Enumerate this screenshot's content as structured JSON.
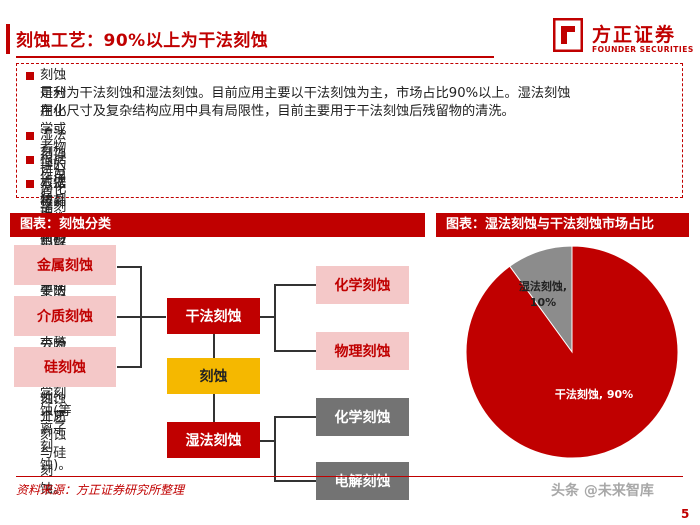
{
  "header": {
    "title": "刻蚀工艺：90%以上为干法刻蚀",
    "logo_cn": "方正证券",
    "logo_en": "FOUNDER SECURITIES",
    "brand_color": "#c00000"
  },
  "bullets": [
    "刻蚀是利用化学或者物理的方法将晶圆表面附着的不必要的材质进行去除的过程。刻蚀工艺",
    "可分为干法刻蚀和湿法刻蚀。目前应用主要以干法刻蚀为主，市场占比90%以上。湿法刻蚀",
    "在小尺寸及复杂结构应用中具有局限性，目前主要用于干法刻蚀后残留物的清洗。",
    "湿法刻蚀可分为化学刻蚀和电解刻蚀。",
    "根据作用原理，干法刻蚀可分为物理刻蚀(离子铣刻蚀)和化学刻蚀(等离子刻蚀)。",
    "根据被刻蚀的材料类型，干法刻蚀则可分为金属刻蚀、介质刻蚀与硅刻蚀。"
  ],
  "left_section": {
    "header": "图表：刻蚀分类",
    "root": "刻蚀",
    "dry": "干法刻蚀",
    "wet": "湿法刻蚀",
    "materials": [
      "金属刻蚀",
      "介质刻蚀",
      "硅刻蚀"
    ],
    "dry_children": [
      "化学刻蚀",
      "物理刻蚀"
    ],
    "wet_children": [
      "化学刻蚀",
      "电解刻蚀"
    ]
  },
  "right_section": {
    "header": "图表：湿法刻蚀与干法刻蚀市场占比"
  },
  "chart_data": {
    "type": "pie",
    "categories": [
      "湿法刻蚀",
      "干法刻蚀"
    ],
    "values": [
      10,
      90
    ],
    "labels": [
      "湿法刻蚀,",
      "干法刻蚀, 90%"
    ],
    "label_wet_pct": "10%",
    "colors": [
      "#8c8c8c",
      "#c00000"
    ]
  },
  "footer": {
    "source": "资料来源：方正证券研究所整理",
    "page": "5",
    "watermark": "头条 @未来智库"
  }
}
